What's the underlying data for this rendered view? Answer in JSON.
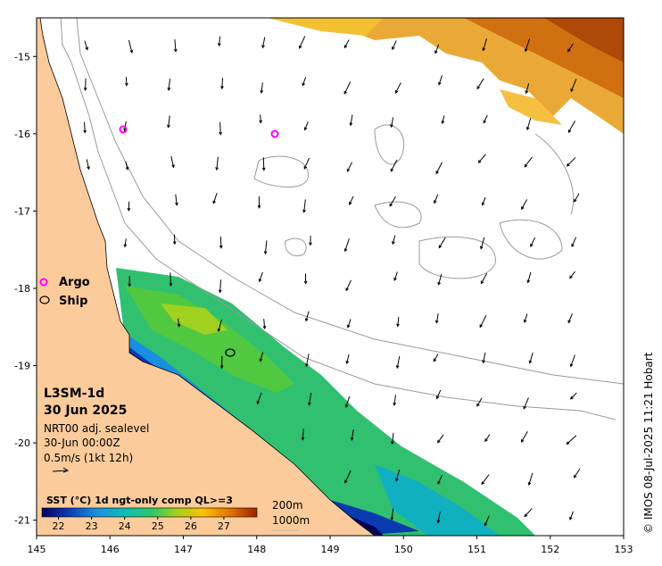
{
  "map": {
    "lat_ticks": [
      "-15",
      "-16",
      "-17",
      "-18",
      "-19",
      "-20",
      "-21"
    ],
    "lon_ticks": [
      "145",
      "146",
      "147",
      "148",
      "149",
      "150",
      "151",
      "152",
      "153"
    ],
    "lon_range": [
      145,
      153
    ],
    "lat_range": [
      -21.2,
      -14.5
    ]
  },
  "legend": {
    "argo_label": "Argo",
    "ship_label": "Ship"
  },
  "info": {
    "product": "L3SM-1d",
    "date": "30 Jun 2025",
    "line1": "NRT00 adj. sealevel",
    "line2": "30-Jun 00:00Z",
    "line3": "0.5m/s (1kt 12h)"
  },
  "colorbar": {
    "title": "SST (°C) 1d ngt-only comp QL>=3",
    "ticks": [
      "22",
      "23",
      "24",
      "25",
      "26",
      "27"
    ],
    "range": [
      21.5,
      28.0
    ],
    "colors": [
      "#080058",
      "#0a3ab0",
      "#1a8fe0",
      "#10c0b0",
      "#30c860",
      "#a0d020",
      "#ffc000",
      "#e07000",
      "#a02000"
    ]
  },
  "isobaths": {
    "label1": "200m",
    "label2": "1000m"
  },
  "credit": "© IMOS 08-Jul-2025 11:21 Hobart",
  "colors": {
    "land": "#fbcb9b",
    "argo": "#ff00ff",
    "contour": "#999999"
  }
}
